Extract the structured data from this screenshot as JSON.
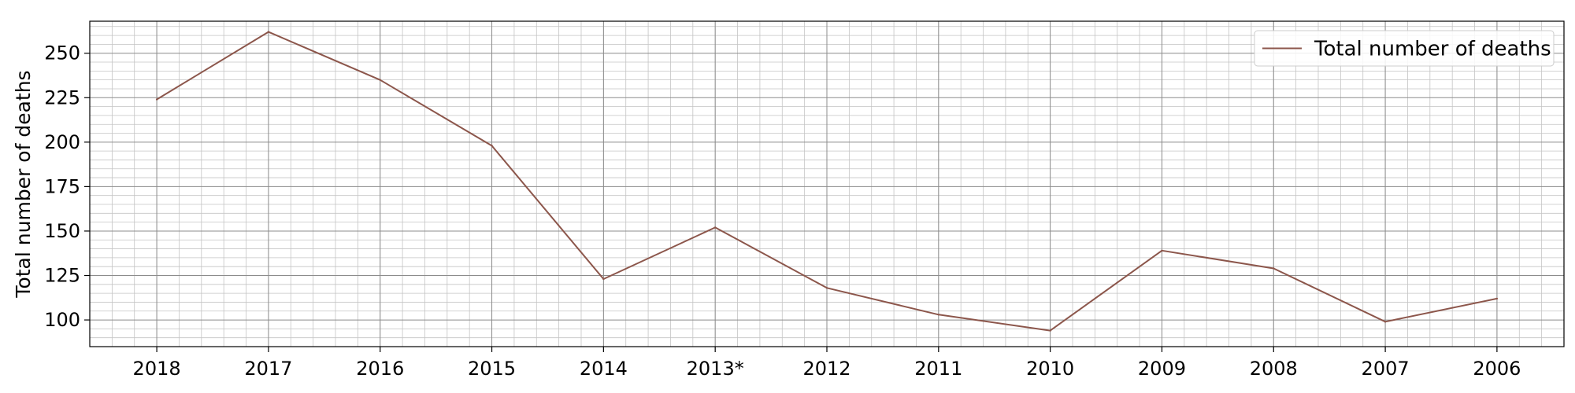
{
  "chart_data": {
    "type": "line",
    "categories": [
      "2018",
      "2017",
      "2016",
      "2015",
      "2014",
      "2013*",
      "2012",
      "2011",
      "2010",
      "2009",
      "2008",
      "2007",
      "2006"
    ],
    "series": [
      {
        "name": "Total number of deaths",
        "values": [
          224,
          262,
          235,
          198,
          123,
          152,
          118,
          103,
          94,
          139,
          129,
          99,
          112
        ],
        "color": "#8c564b"
      }
    ],
    "ylabel": "Total number of deaths",
    "ylim": [
      85,
      268
    ],
    "yticks": [
      100,
      125,
      150,
      175,
      200,
      225,
      250
    ],
    "grid": true,
    "grid_minor": true,
    "legend_position": "top-right"
  }
}
